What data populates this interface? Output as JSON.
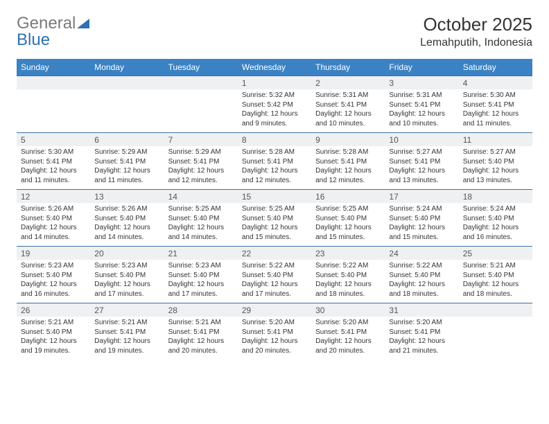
{
  "brand": {
    "general": "General",
    "blue": "Blue"
  },
  "title": {
    "month": "October 2025",
    "location": "Lemahputih, Indonesia"
  },
  "header_bg": "#3b82c4",
  "daynum_bg": "#eef0f2",
  "border_color": "#3b6fa0",
  "weekdays": [
    "Sunday",
    "Monday",
    "Tuesday",
    "Wednesday",
    "Thursday",
    "Friday",
    "Saturday"
  ],
  "first_weekday_index": 3,
  "days": [
    {
      "n": "1",
      "sunrise": "5:32 AM",
      "sunset": "5:42 PM",
      "daylight": "12 hours and 9 minutes."
    },
    {
      "n": "2",
      "sunrise": "5:31 AM",
      "sunset": "5:41 PM",
      "daylight": "12 hours and 10 minutes."
    },
    {
      "n": "3",
      "sunrise": "5:31 AM",
      "sunset": "5:41 PM",
      "daylight": "12 hours and 10 minutes."
    },
    {
      "n": "4",
      "sunrise": "5:30 AM",
      "sunset": "5:41 PM",
      "daylight": "12 hours and 11 minutes."
    },
    {
      "n": "5",
      "sunrise": "5:30 AM",
      "sunset": "5:41 PM",
      "daylight": "12 hours and 11 minutes."
    },
    {
      "n": "6",
      "sunrise": "5:29 AM",
      "sunset": "5:41 PM",
      "daylight": "12 hours and 11 minutes."
    },
    {
      "n": "7",
      "sunrise": "5:29 AM",
      "sunset": "5:41 PM",
      "daylight": "12 hours and 12 minutes."
    },
    {
      "n": "8",
      "sunrise": "5:28 AM",
      "sunset": "5:41 PM",
      "daylight": "12 hours and 12 minutes."
    },
    {
      "n": "9",
      "sunrise": "5:28 AM",
      "sunset": "5:41 PM",
      "daylight": "12 hours and 12 minutes."
    },
    {
      "n": "10",
      "sunrise": "5:27 AM",
      "sunset": "5:41 PM",
      "daylight": "12 hours and 13 minutes."
    },
    {
      "n": "11",
      "sunrise": "5:27 AM",
      "sunset": "5:40 PM",
      "daylight": "12 hours and 13 minutes."
    },
    {
      "n": "12",
      "sunrise": "5:26 AM",
      "sunset": "5:40 PM",
      "daylight": "12 hours and 14 minutes."
    },
    {
      "n": "13",
      "sunrise": "5:26 AM",
      "sunset": "5:40 PM",
      "daylight": "12 hours and 14 minutes."
    },
    {
      "n": "14",
      "sunrise": "5:25 AM",
      "sunset": "5:40 PM",
      "daylight": "12 hours and 14 minutes."
    },
    {
      "n": "15",
      "sunrise": "5:25 AM",
      "sunset": "5:40 PM",
      "daylight": "12 hours and 15 minutes."
    },
    {
      "n": "16",
      "sunrise": "5:25 AM",
      "sunset": "5:40 PM",
      "daylight": "12 hours and 15 minutes."
    },
    {
      "n": "17",
      "sunrise": "5:24 AM",
      "sunset": "5:40 PM",
      "daylight": "12 hours and 15 minutes."
    },
    {
      "n": "18",
      "sunrise": "5:24 AM",
      "sunset": "5:40 PM",
      "daylight": "12 hours and 16 minutes."
    },
    {
      "n": "19",
      "sunrise": "5:23 AM",
      "sunset": "5:40 PM",
      "daylight": "12 hours and 16 minutes."
    },
    {
      "n": "20",
      "sunrise": "5:23 AM",
      "sunset": "5:40 PM",
      "daylight": "12 hours and 17 minutes."
    },
    {
      "n": "21",
      "sunrise": "5:23 AM",
      "sunset": "5:40 PM",
      "daylight": "12 hours and 17 minutes."
    },
    {
      "n": "22",
      "sunrise": "5:22 AM",
      "sunset": "5:40 PM",
      "daylight": "12 hours and 17 minutes."
    },
    {
      "n": "23",
      "sunrise": "5:22 AM",
      "sunset": "5:40 PM",
      "daylight": "12 hours and 18 minutes."
    },
    {
      "n": "24",
      "sunrise": "5:22 AM",
      "sunset": "5:40 PM",
      "daylight": "12 hours and 18 minutes."
    },
    {
      "n": "25",
      "sunrise": "5:21 AM",
      "sunset": "5:40 PM",
      "daylight": "12 hours and 18 minutes."
    },
    {
      "n": "26",
      "sunrise": "5:21 AM",
      "sunset": "5:40 PM",
      "daylight": "12 hours and 19 minutes."
    },
    {
      "n": "27",
      "sunrise": "5:21 AM",
      "sunset": "5:41 PM",
      "daylight": "12 hours and 19 minutes."
    },
    {
      "n": "28",
      "sunrise": "5:21 AM",
      "sunset": "5:41 PM",
      "daylight": "12 hours and 20 minutes."
    },
    {
      "n": "29",
      "sunrise": "5:20 AM",
      "sunset": "5:41 PM",
      "daylight": "12 hours and 20 minutes."
    },
    {
      "n": "30",
      "sunrise": "5:20 AM",
      "sunset": "5:41 PM",
      "daylight": "12 hours and 20 minutes."
    },
    {
      "n": "31",
      "sunrise": "5:20 AM",
      "sunset": "5:41 PM",
      "daylight": "12 hours and 21 minutes."
    }
  ],
  "labels": {
    "sunrise": "Sunrise:",
    "sunset": "Sunset:",
    "daylight": "Daylight:"
  }
}
